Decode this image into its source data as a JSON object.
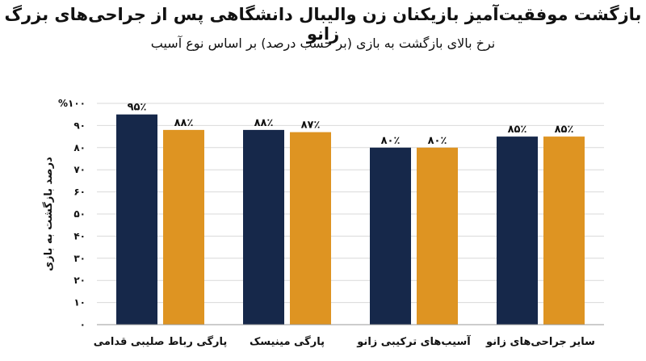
{
  "chart_data": {
    "type": "bar",
    "title": "بازگشت موفقیت‌آمیز بازیکنان زن والیبال دانشگاهی پس از جراحی‌های بزرگ زانو",
    "subtitle": "نرخ بالای بازگشت به بازی (بر حسب درصد) بر اساس نوع آسیب",
    "ylabel": "درصد بازگشت به بازی",
    "xlabel": "",
    "ylim": [
      0,
      100
    ],
    "yticks": [
      0,
      10,
      20,
      30,
      40,
      50,
      60,
      70,
      80,
      90,
      100
    ],
    "ytick_labels": [
      "۰",
      "۱۰",
      "۲۰",
      "۳۰",
      "۴۰",
      "۵۰",
      "۶۰",
      "۷۰",
      "۸۰",
      "۹۰",
      "%۱۰۰"
    ],
    "categories": [
      "پارگی رباط صلیبی قدامی",
      "پارگی مینیسک",
      "آسیب‌های ترکیبی زانو",
      "سایر جراحی‌های زانو"
    ],
    "series": [
      {
        "color": "#16284a",
        "values": [
          95,
          88,
          80,
          85
        ],
        "labels": [
          "۹۵٪",
          "۸۸٪",
          "۸۰٪",
          "۸۵٪"
        ]
      },
      {
        "color": "#de9422",
        "values": [
          88,
          87,
          80,
          85
        ],
        "labels": [
          "۸۸٪",
          "۸۷٪",
          "۸۰٪",
          "۸۵٪"
        ]
      }
    ],
    "grid": true,
    "legend": "none"
  }
}
